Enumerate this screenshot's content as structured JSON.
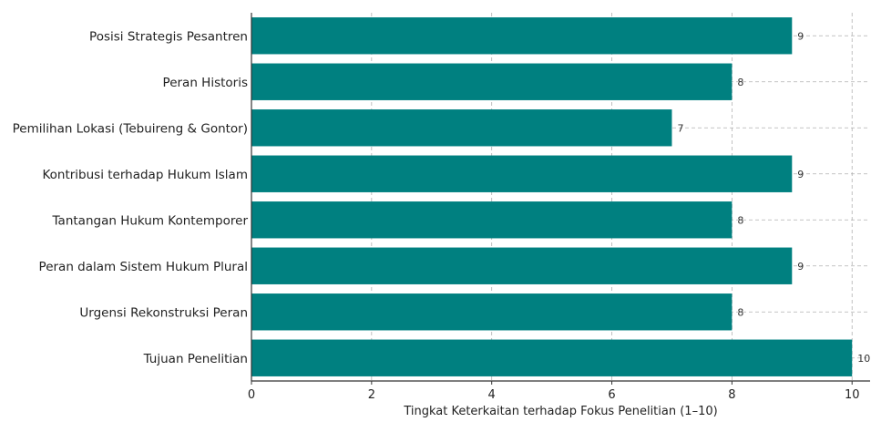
{
  "chart_data": {
    "type": "bar",
    "orientation": "horizontal",
    "categories": [
      "Posisi Strategis Pesantren",
      "Peran Historis",
      "Pemilihan Lokasi (Tebuireng & Gontor)",
      "Kontribusi terhadap Hukum Islam",
      "Tantangan Hukum Kontemporer",
      "Peran dalam Sistem Hukum Plural",
      "Urgensi Rekonstruksi Peran",
      "Tujuan Penelitian"
    ],
    "values": [
      9,
      8,
      7,
      9,
      8,
      9,
      8,
      10
    ],
    "xlabel": "Tingkat Keterkaitan terhadap Fokus Penelitian (1–10)",
    "ylabel": "",
    "xlim": [
      0,
      10.3
    ],
    "xticks": [
      0,
      2,
      4,
      6,
      8,
      10
    ],
    "grid": true,
    "bar_color": "#008080",
    "data_labels": true
  }
}
